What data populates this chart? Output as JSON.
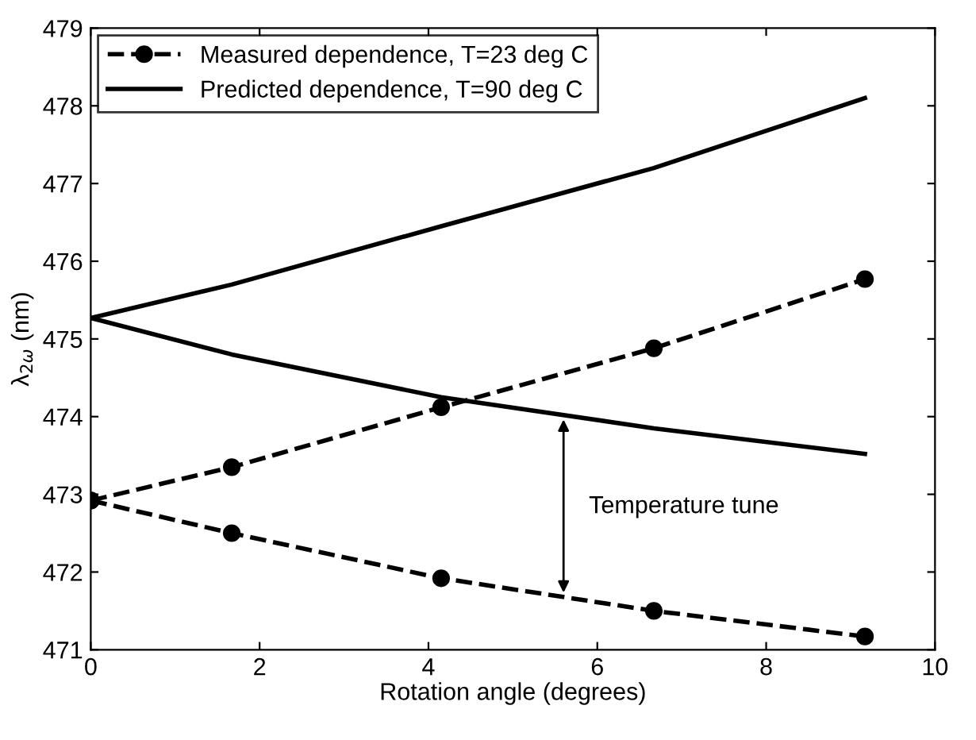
{
  "chart_data": {
    "type": "line",
    "xlabel": "Rotation angle (degrees)",
    "ylabel": "λ$_{2ω}$ (nm)",
    "series": [
      {
        "name": "Measured dependence, T=23 deg C",
        "color": "#000000",
        "line_style": "dashed",
        "marker": "circle",
        "x": [
          0,
          1.67,
          4.15,
          6.67,
          9.17
        ],
        "values": [
          472.92,
          473.35,
          474.12,
          474.88,
          475.77
        ]
      },
      {
        "color": "#000000",
        "line_style": "dashed",
        "marker": "circle",
        "x": [
          0,
          1.67,
          4.15,
          6.67,
          9.17
        ],
        "values": [
          472.92,
          472.5,
          471.92,
          471.5,
          471.17
        ]
      },
      {
        "name": "Predicted dependence, T=90 deg C",
        "color": "#000000",
        "line_style": "solid",
        "marker": "none",
        "x": [
          0,
          1.67,
          4.15,
          6.67,
          9.17
        ],
        "values": [
          475.27,
          475.7,
          476.45,
          477.2,
          478.1
        ]
      },
      {
        "color": "#000000",
        "line_style": "solid",
        "marker": "none",
        "x": [
          0,
          1.67,
          4.15,
          6.67,
          9.17
        ],
        "values": [
          475.27,
          474.8,
          474.25,
          473.85,
          473.52
        ]
      }
    ],
    "annotations": [
      "Temperature tune"
    ],
    "xlim": [
      0,
      10
    ],
    "xticks": [
      0,
      2,
      4,
      6,
      8,
      10
    ],
    "ylim": [
      471,
      479
    ],
    "yticks": [
      471,
      472,
      473,
      474,
      475,
      476,
      477,
      478,
      479
    ],
    "grid": false,
    "legend": "top left"
  }
}
